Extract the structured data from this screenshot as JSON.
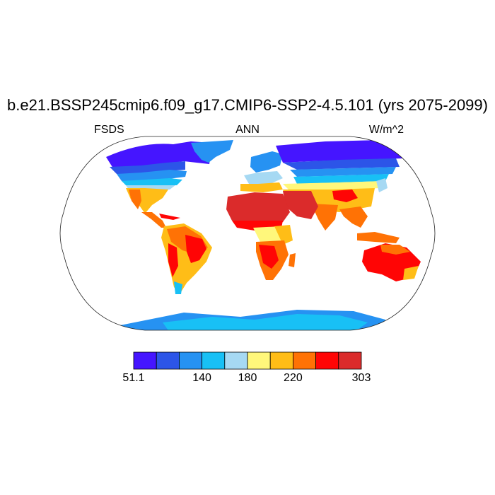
{
  "title": "b.e21.BSSP245cmip6.f09_g17.CMIP6-SSP2-4.5.101 (yrs 2075-2099)",
  "left_label": "FSDS",
  "center_label": "ANN",
  "right_label": "W/m^2",
  "colorbar": {
    "colors": [
      "#4515ff",
      "#2c55e8",
      "#2692f2",
      "#18c0f5",
      "#a6d9f3",
      "#fff77b",
      "#ffbd17",
      "#ff7205",
      "#ff0505",
      "#db2b2b"
    ],
    "tick_labels": [
      {
        "text": "51.1",
        "index": 0
      },
      {
        "text": "140",
        "index": 3
      },
      {
        "text": "180",
        "index": 5
      },
      {
        "text": "220",
        "index": 7
      },
      {
        "text": "303",
        "index": 10
      }
    ]
  },
  "map": {
    "projection": "robinson",
    "ocean_color": "#ffffff",
    "coastline_color": "#000000"
  }
}
